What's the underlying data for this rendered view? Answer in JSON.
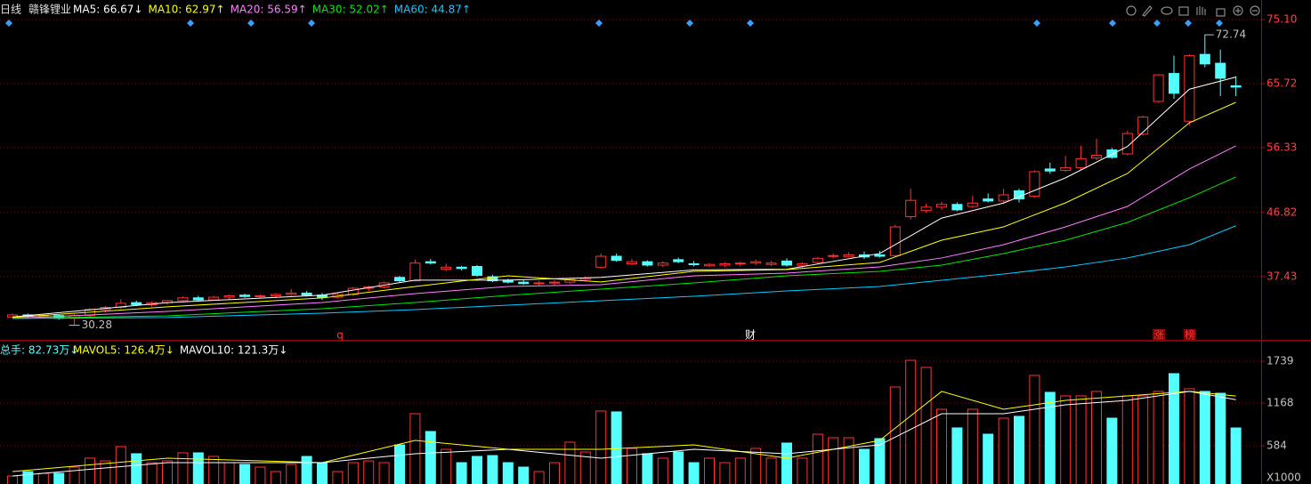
{
  "chart_data": [
    {
      "type": "candlestick",
      "period": "日线",
      "title": "赣锋锂业",
      "open": [
        31.5,
        31.8,
        31.6,
        31.7,
        31.3,
        31.7,
        32.6,
        32.9,
        33.6,
        33.3,
        33.6,
        33.9,
        34.3,
        34.0,
        34.4,
        34.7,
        34.5,
        34.6,
        34.8,
        35.0,
        34.7,
        34.4,
        34.8,
        35.7,
        35.9,
        37.3,
        36.8,
        39.6,
        38.5,
        38.8,
        38.9,
        37.4,
        36.9,
        36.6,
        36.4,
        36.5,
        36.6,
        37.0,
        38.8,
        40.4,
        39.3,
        39.6,
        39.1,
        39.9,
        39.3,
        39.0,
        39.1,
        39.3,
        39.4,
        39.2,
        39.7,
        39.0,
        39.5,
        40.4,
        40.3,
        40.6,
        40.6,
        40.5,
        46.2,
        47.1,
        47.6,
        48.0,
        47.7,
        48.8,
        48.5,
        50.0,
        49.2,
        53.2,
        53.0,
        53.4,
        54.8,
        56.0,
        55.4,
        58.3,
        63.1,
        67.2,
        60.2,
        70.0,
        68.7,
        65.4
      ],
      "high": [
        32.0,
        32.0,
        31.9,
        31.8,
        31.9,
        32.8,
        33.1,
        34.1,
        33.9,
        33.8,
        34.0,
        34.5,
        34.6,
        34.6,
        34.8,
        34.9,
        34.8,
        35.0,
        35.6,
        35.3,
        35.0,
        35.0,
        35.9,
        36.1,
        36.7,
        37.5,
        39.9,
        40.0,
        39.3,
        39.0,
        39.1,
        37.7,
        37.1,
        36.9,
        36.8,
        36.9,
        37.2,
        37.4,
        40.8,
        40.8,
        40.0,
        39.8,
        39.7,
        40.2,
        39.7,
        39.4,
        39.5,
        39.6,
        39.9,
        39.7,
        40.1,
        39.5,
        40.3,
        40.8,
        41.0,
        41.1,
        41.2,
        45.0,
        50.3,
        48.1,
        48.4,
        48.3,
        49.3,
        49.6,
        50.3,
        50.3,
        53.0,
        54.1,
        55.1,
        56.6,
        57.6,
        56.3,
        58.8,
        61.0,
        67.1,
        69.8,
        70.0,
        72.74,
        70.7,
        66.8
      ],
      "low": [
        31.3,
        31.4,
        31.3,
        31.1,
        30.28,
        31.5,
        32.2,
        32.7,
        33.1,
        33.0,
        33.3,
        33.7,
        33.8,
        33.9,
        34.1,
        34.3,
        34.2,
        34.3,
        34.6,
        34.5,
        34.0,
        34.2,
        34.6,
        35.3,
        35.7,
        36.6,
        36.7,
        39.2,
        38.2,
        38.3,
        37.4,
        36.6,
        36.4,
        36.2,
        36.1,
        36.2,
        36.4,
        36.7,
        38.6,
        39.6,
        39.1,
        38.9,
        38.8,
        39.4,
        38.9,
        38.8,
        38.8,
        38.9,
        39.1,
        39.0,
        38.9,
        38.6,
        39.3,
        40.1,
        40.2,
        40.0,
        40.2,
        40.3,
        45.8,
        46.8,
        47.2,
        47.0,
        47.5,
        48.3,
        48.2,
        48.3,
        49.0,
        52.5,
        52.8,
        53.0,
        54.5,
        54.7,
        55.2,
        58.1,
        62.9,
        63.5,
        59.6,
        68.1,
        63.9,
        63.9
      ],
      "close": [
        31.8,
        31.6,
        31.7,
        31.3,
        31.7,
        32.6,
        32.9,
        33.5,
        33.3,
        33.6,
        33.9,
        34.3,
        34.0,
        34.4,
        34.6,
        34.5,
        34.6,
        34.8,
        35.0,
        34.7,
        34.4,
        34.8,
        35.7,
        35.9,
        36.5,
        36.8,
        39.4,
        39.4,
        38.8,
        38.6,
        37.6,
        36.8,
        36.6,
        36.4,
        36.5,
        36.6,
        37.0,
        37.2,
        40.4,
        39.8,
        39.6,
        39.1,
        39.4,
        39.6,
        39.2,
        39.2,
        39.3,
        39.4,
        39.6,
        39.4,
        39.1,
        39.3,
        40.1,
        40.5,
        40.6,
        40.3,
        40.4,
        44.7,
        48.6,
        47.6,
        48.0,
        47.2,
        48.2,
        48.5,
        49.4,
        48.8,
        52.8,
        52.9,
        53.4,
        54.7,
        55.2,
        54.9,
        58.4,
        60.8,
        67.0,
        64.3,
        69.8,
        68.6,
        66.5,
        65.2
      ],
      "up_color": "#ff3232",
      "down_color": "#54ffff",
      "series": [
        {
          "name": "MA5",
          "label": "MA5: 66.67↓",
          "color": "#ffffff",
          "x": [
            0,
            10,
            20,
            26,
            32,
            38,
            44,
            50,
            56,
            60,
            64,
            68,
            72,
            76,
            79
          ],
          "values": [
            31.5,
            33.6,
            34.7,
            36.9,
            36.9,
            37.3,
            38.4,
            38.5,
            40.8,
            46.0,
            48.2,
            51.9,
            56.5,
            64.9,
            66.67
          ]
        },
        {
          "name": "MA10",
          "label": "MA10: 62.97↑",
          "color": "#ffff00",
          "x": [
            0,
            10,
            20,
            26,
            32,
            38,
            44,
            50,
            56,
            60,
            64,
            68,
            72,
            76,
            79
          ],
          "values": [
            31.41,
            32.98,
            34.28,
            35.97,
            37.54,
            36.63,
            38.19,
            38.45,
            39.49,
            42.75,
            44.71,
            48.23,
            52.54,
            59.97,
            62.97
          ]
        },
        {
          "name": "MA20",
          "label": "MA20: 56.59↑",
          "color": "#ff80ff",
          "x": [
            0,
            10,
            20,
            26,
            32,
            38,
            44,
            50,
            56,
            60,
            64,
            68,
            72,
            76,
            79
          ],
          "values": [
            31.28,
            32.32,
            33.62,
            34.93,
            35.97,
            36.23,
            37.54,
            37.93,
            38.84,
            40.15,
            42.1,
            44.71,
            47.71,
            53.19,
            56.59
          ]
        },
        {
          "name": "MA30",
          "label": "MA30: 52.02↑",
          "color": "#00e600",
          "x": [
            0,
            10,
            20,
            26,
            32,
            38,
            44,
            50,
            56,
            60,
            64,
            68,
            72,
            76,
            79
          ],
          "values": [
            31.28,
            31.67,
            32.71,
            33.62,
            34.67,
            35.58,
            36.49,
            37.54,
            38.19,
            39.1,
            40.8,
            42.75,
            45.36,
            48.99,
            52.02
          ]
        },
        {
          "name": "MA60",
          "label": "MA60: 44.87↑",
          "color": "#00ccff",
          "x": [
            0,
            10,
            20,
            26,
            32,
            38,
            44,
            50,
            56,
            60,
            64,
            68,
            72,
            76,
            79
          ],
          "values": [
            31.28,
            31.41,
            32.06,
            32.58,
            33.23,
            33.88,
            34.54,
            35.32,
            35.97,
            36.88,
            37.8,
            38.84,
            40.15,
            42.1,
            44.87
          ]
        }
      ],
      "ylim": [
        28.14,
        76.93
      ],
      "yticks": [
        {
          "value": 75.1,
          "label": "75.10"
        },
        {
          "value": 65.72,
          "label": "65.72"
        },
        {
          "value": 56.33,
          "label": "56.33"
        },
        {
          "value": 46.82,
          "label": "46.82"
        },
        {
          "value": 37.43,
          "label": "37.43"
        }
      ],
      "grid": true,
      "event_labels": [
        "q",
        "财",
        "涨",
        "榜"
      ]
    },
    {
      "type": "bar",
      "title": "总手: 82.73万↓",
      "values": [
        170,
        231,
        207,
        207,
        292,
        414,
        377,
        572,
        475,
        353,
        377,
        487,
        487,
        438,
        353,
        329,
        292,
        231,
        329,
        438,
        353,
        231,
        353,
        377,
        353,
        596,
        1022,
        779,
        535,
        353,
        438,
        450,
        353,
        292,
        231,
        353,
        633,
        499,
        1059,
        1047,
        548,
        475,
        414,
        499,
        353,
        414,
        353,
        414,
        548,
        414,
        621,
        414,
        742,
        694,
        694,
        535,
        682,
        1387,
        1752,
        1655,
        1083,
        828,
        1083,
        742,
        961,
        986,
        1546,
        1314,
        1266,
        1266,
        1327,
        961,
        1266,
        1266,
        1327,
        1570,
        1363,
        1327,
        1302,
        827.3
      ],
      "series": [
        {
          "name": "MAVOL5",
          "label": "MAVOL5: 126.4万↓",
          "color": "#ffff00",
          "x": [
            0,
            10,
            20,
            26,
            32,
            38,
            44,
            50,
            56,
            60,
            64,
            68,
            72,
            76,
            79
          ],
          "values": [
            231,
            414,
            353,
            657,
            535,
            535,
            596,
            414,
            657,
            1327,
            1083,
            1205,
            1266,
            1327,
            1264
          ]
        },
        {
          "name": "MAVOL10",
          "label": "MAVOL10: 121.3万↓",
          "color": "#ffffff",
          "x": [
            0,
            10,
            20,
            26,
            32,
            38,
            44,
            50,
            56,
            60,
            64,
            68,
            72,
            76,
            79
          ],
          "values": [
            170,
            353,
            353,
            475,
            535,
            414,
            535,
            475,
            596,
            1022,
            1022,
            1144,
            1205,
            1327,
            1213
          ]
        }
      ],
      "ylim": [
        61,
        1837
      ],
      "yticks": [
        1739,
        1168,
        584
      ],
      "unit_label": "X1000",
      "grid": true
    }
  ]
}
